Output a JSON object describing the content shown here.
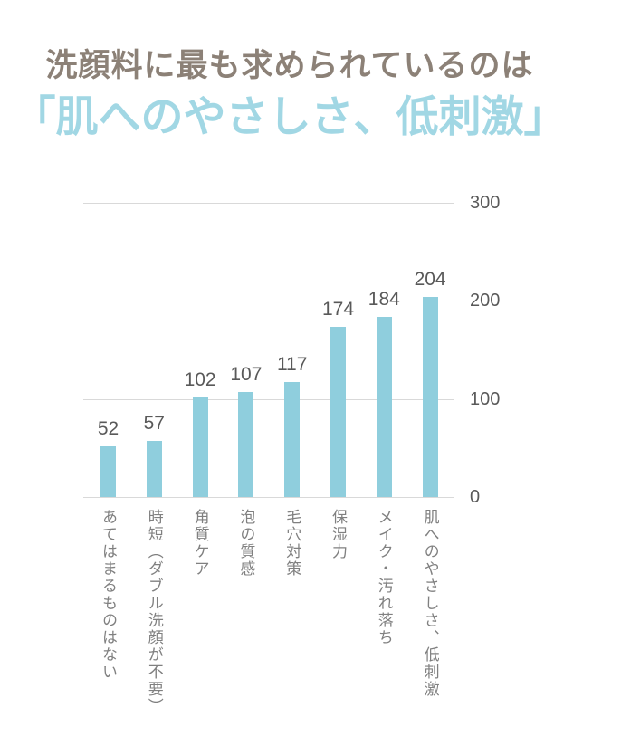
{
  "title": {
    "line1": "洗顔料に最も求められているのは",
    "line2": "「肌へのやさしさ、低刺激」"
  },
  "chart_data": {
    "type": "bar",
    "categories": [
      "あてはまるものはない",
      "時短（ダブル洗顔が不要）",
      "角質ケア",
      "泡の質感",
      "毛穴対策",
      "保湿力",
      "メイク・汚れ落ち",
      "肌へのやさしさ、低刺激"
    ],
    "values": [
      52,
      57,
      102,
      107,
      117,
      174,
      184,
      204
    ],
    "value_labels": [
      "52",
      "57",
      "102",
      "107",
      "117",
      "174",
      "184",
      "204"
    ],
    "yticks": [
      0,
      100,
      200,
      300
    ],
    "ylim": [
      0,
      300
    ],
    "grid": true,
    "legend": "none",
    "ytick_side": "right",
    "category_label_orientation": "vertical"
  },
  "colors": {
    "background": "#FFFFFF",
    "title_line1": "#8C8177",
    "title_line2": "#A1D7E4",
    "bar": "#8FCEDD",
    "value_label": "#595959",
    "axis_label": "#595959",
    "category_label": "#808080",
    "gridline": "#D9D9D9"
  }
}
